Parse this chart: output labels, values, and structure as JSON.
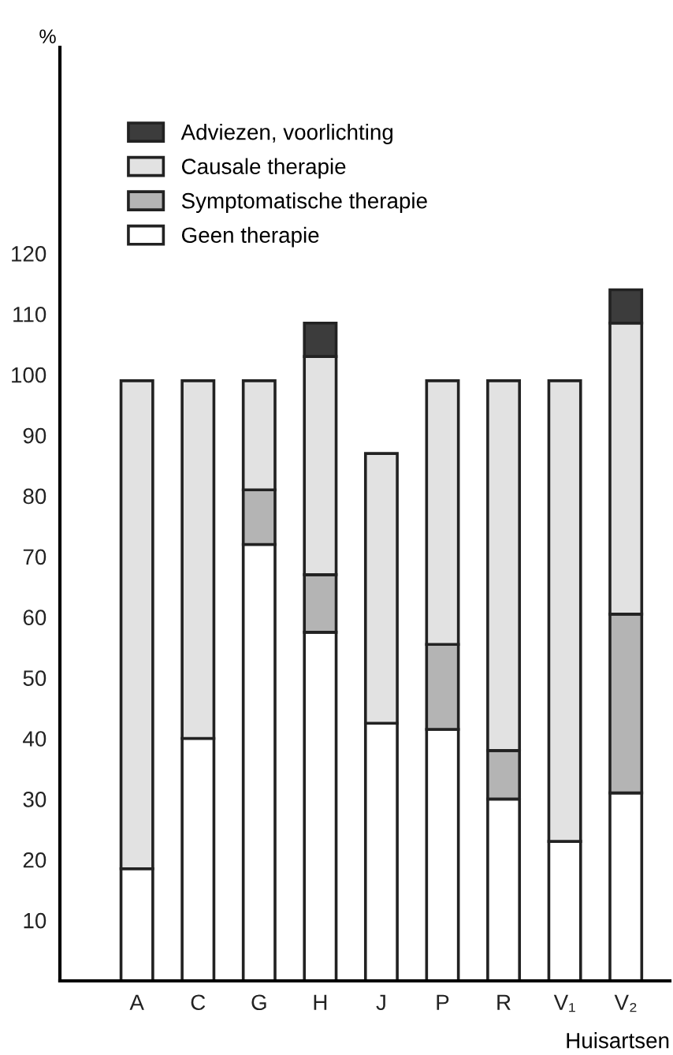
{
  "chart_data": {
    "type": "bar",
    "stacked": true,
    "ylabel": "%",
    "xlabel": "Huisartsen",
    "categories": [
      "A",
      "C",
      "G",
      "H",
      "J",
      "P",
      "R",
      "V₁",
      "V₂"
    ],
    "series": [
      {
        "name": "Geen therapie",
        "color": "#ffffff",
        "values": [
          18.5,
          40,
          72,
          57.5,
          42.5,
          41.5,
          30,
          23,
          31
        ]
      },
      {
        "name": "Symptomatische therapie",
        "color": "#b4b4b4",
        "values": [
          null,
          null,
          9,
          9.5,
          null,
          14,
          8,
          null,
          29.5
        ]
      },
      {
        "name": "Causale therapie",
        "color": "#e2e2e2",
        "values": [
          80.5,
          59,
          18,
          36,
          44.5,
          43.5,
          61,
          76,
          48
        ]
      },
      {
        "name": "Adviezen, voorlichting",
        "color": "#3c3c3c",
        "values": [
          null,
          null,
          null,
          5.5,
          null,
          null,
          null,
          null,
          5.5
        ]
      }
    ],
    "ylim": [
      0,
      154
    ],
    "yticks": [
      10,
      20,
      30,
      40,
      50,
      60,
      70,
      80,
      90,
      100,
      110,
      120
    ],
    "legend": "top left",
    "grid": false
  }
}
